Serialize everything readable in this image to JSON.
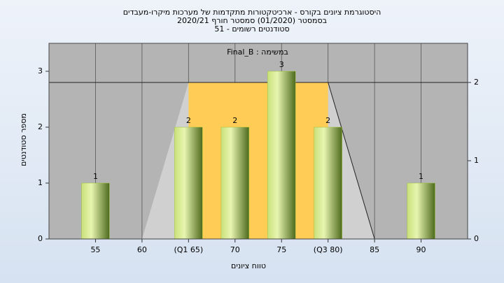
{
  "chart_data": {
    "type": "bar",
    "title": [
      "היסטוגרמת ציונים בקורס - ארכיטקטורות מתקדמות של מערכות מיקרו-מעבדים",
      "בסמסטר  (01/2020)  סמסטר חורף  2020/21",
      "סטודנטים רשומים - 51"
    ],
    "annotation": "במשימה : Final_B",
    "x_label": "טווח ציונים",
    "y_label": "מספר סטודנטים",
    "x": [
      55,
      60,
      65,
      70,
      75,
      80,
      85,
      90
    ],
    "values": [
      1,
      0,
      2,
      2,
      3,
      2,
      0,
      1
    ],
    "color": "#9dc23f",
    "xlim": [
      50,
      95
    ],
    "xticks": [
      55,
      60,
      {
        "value": 65,
        "label": "(Q1 65)"
      },
      70,
      75,
      {
        "value": 80,
        "label": "(Q3 80)"
      },
      85,
      90
    ],
    "ylim": [
      0,
      3.5
    ],
    "yticks": [
      0,
      1,
      2,
      3
    ],
    "y2lim": [
      0,
      2.5
    ],
    "y2ticks": [
      0,
      1,
      2
    ],
    "overlay": {
      "x": [
        60,
        65,
        80,
        85
      ],
      "values": [
        0,
        2,
        2,
        0
      ],
      "axis": "y2",
      "color": "#ffcc55"
    }
  }
}
